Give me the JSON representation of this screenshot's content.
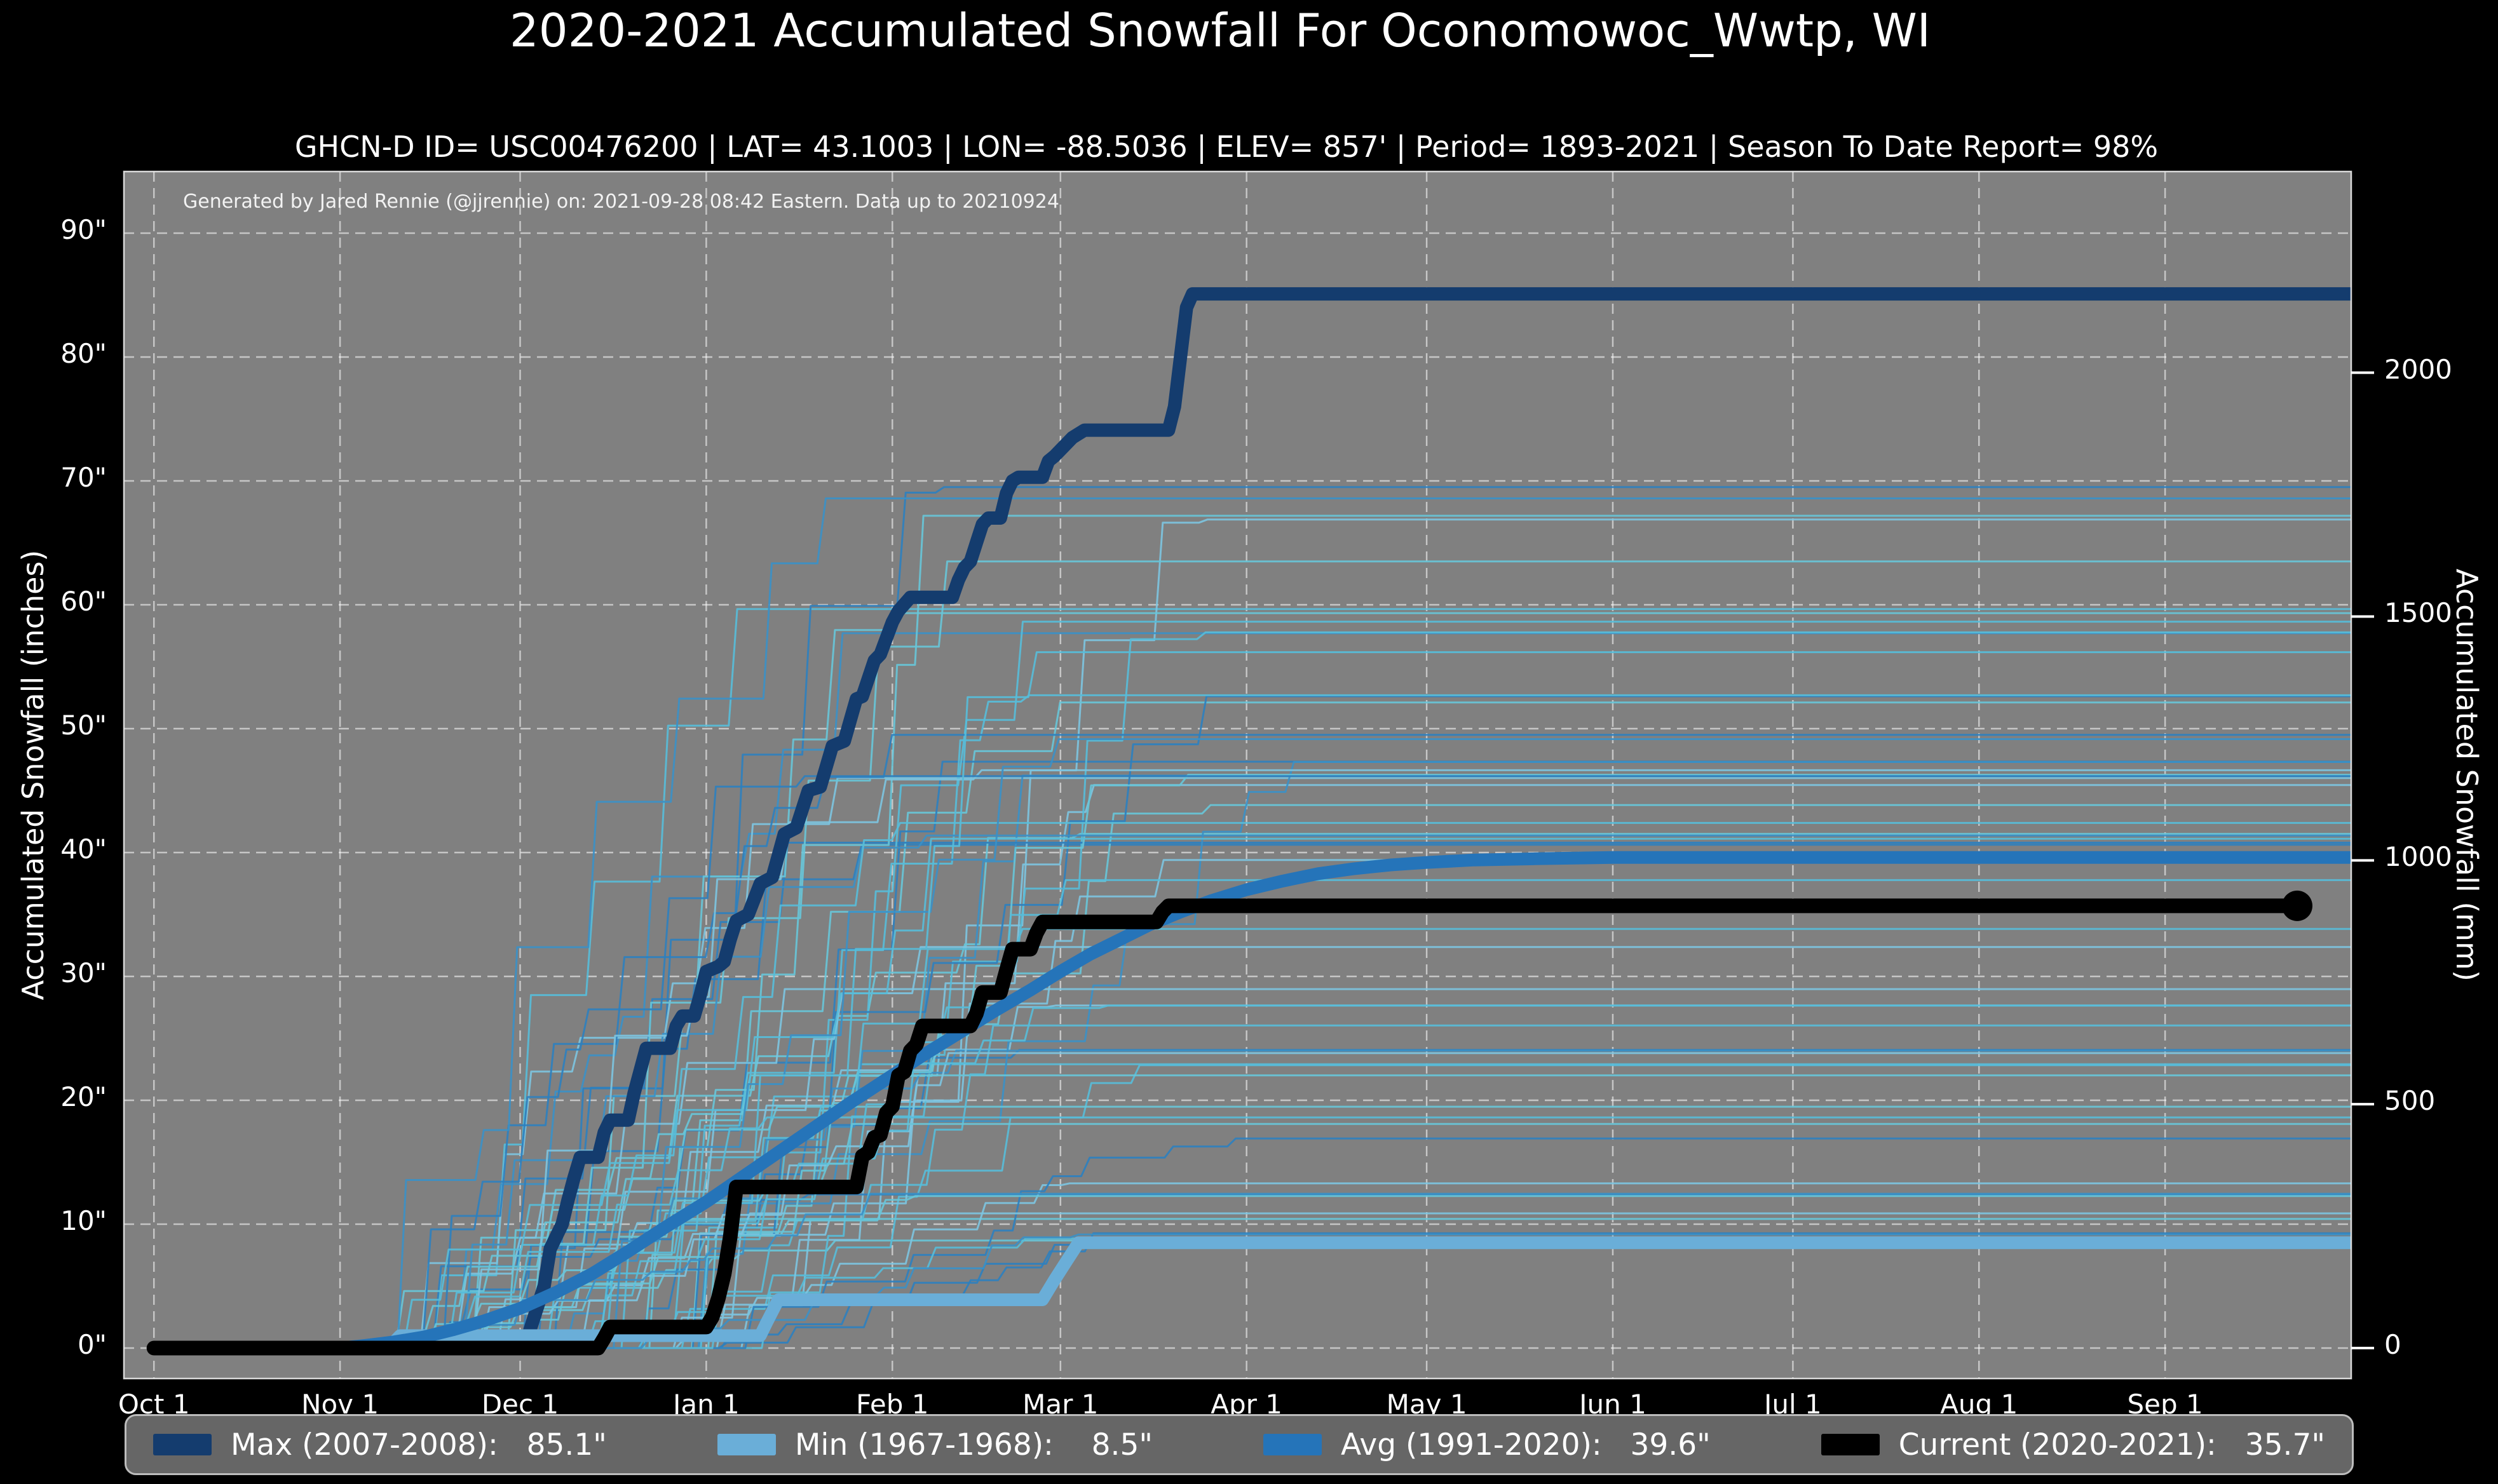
{
  "chart_data": {
    "type": "line",
    "title": "2020-2021 Accumulated Snowfall For Oconomowoc_Wwtp, WI",
    "subtitle": "GHCN-D ID= USC00476200 | LAT= 43.1003 | LON= -88.5036 | ELEV= 857' | Period= 1893-2021 | Season To Date Report= 98%",
    "attribution": "Generated by Jared Rennie (@jjrennie) on: 2021-09-28 08:42 Eastern. Data up to 20210924",
    "x_unit": "days since Oct 1",
    "x_axis": {
      "ticks": [
        {
          "label": "Oct 1",
          "day": 0
        },
        {
          "label": "Nov 1",
          "day": 31
        },
        {
          "label": "Dec 1",
          "day": 61
        },
        {
          "label": "Jan 1",
          "day": 92
        },
        {
          "label": "Feb 1",
          "day": 123
        },
        {
          "label": "Mar 1",
          "day": 151
        },
        {
          "label": "Apr 1",
          "day": 182
        },
        {
          "label": "May 1",
          "day": 212
        },
        {
          "label": "Jun 1",
          "day": 243
        },
        {
          "label": "Jul 1",
          "day": 273
        },
        {
          "label": "Aug 1",
          "day": 304
        },
        {
          "label": "Sep 1",
          "day": 335
        }
      ]
    },
    "y_left": {
      "label": "Accumulated Snowfall (inches)",
      "ticks": [
        {
          "label": "0\"",
          "value": 0
        },
        {
          "label": "10\"",
          "value": 10
        },
        {
          "label": "20\"",
          "value": 20
        },
        {
          "label": "30\"",
          "value": 30
        },
        {
          "label": "40\"",
          "value": 40
        },
        {
          "label": "50\"",
          "value": 50
        },
        {
          "label": "60\"",
          "value": 60
        },
        {
          "label": "70\"",
          "value": 70
        },
        {
          "label": "80\"",
          "value": 80
        },
        {
          "label": "90\"",
          "value": 90
        }
      ],
      "range": [
        -2.46,
        94.97
      ]
    },
    "y_right": {
      "label": "Accumulated Snowfall (mm)",
      "ticks": [
        {
          "label": "0",
          "mm": 0
        },
        {
          "label": "500",
          "mm": 500
        },
        {
          "label": "1000",
          "mm": 1000
        },
        {
          "label": "1500",
          "mm": 1500
        },
        {
          "label": "2000",
          "mm": 2000
        }
      ]
    },
    "plot": {
      "bg": "#808080",
      "fig_bg": "#000000",
      "grid_color": "rgba(255,255,255,0.55)"
    },
    "series": [
      {
        "id": "max",
        "name": "Max (2007-2008)",
        "final": 85.1,
        "color": "#143c6e",
        "width": 21,
        "points": [
          [
            0,
            0
          ],
          [
            61,
            0
          ],
          [
            62,
            0.5
          ],
          [
            63,
            2
          ],
          [
            64,
            3.5
          ],
          [
            65,
            5
          ],
          [
            66,
            8
          ],
          [
            68,
            10
          ],
          [
            69,
            12
          ],
          [
            70,
            13.8
          ],
          [
            71,
            15.4
          ],
          [
            74,
            15.4
          ],
          [
            75,
            17.4
          ],
          [
            76,
            18.4
          ],
          [
            79,
            18.4
          ],
          [
            80,
            20.6
          ],
          [
            82,
            24.2
          ],
          [
            86,
            24.2
          ],
          [
            87,
            26
          ],
          [
            88,
            26.8
          ],
          [
            90,
            26.8
          ],
          [
            91,
            28.5
          ],
          [
            92,
            30.4
          ],
          [
            94,
            30.8
          ],
          [
            95,
            31.2
          ],
          [
            96,
            33
          ],
          [
            97,
            34.5
          ],
          [
            99,
            35
          ],
          [
            101,
            37.5
          ],
          [
            103,
            38
          ],
          [
            105,
            41.5
          ],
          [
            107,
            42
          ],
          [
            109,
            45
          ],
          [
            111,
            45.3
          ],
          [
            113,
            48.6
          ],
          [
            115,
            49
          ],
          [
            117,
            52.4
          ],
          [
            118,
            52.6
          ],
          [
            120,
            55.5
          ],
          [
            121,
            56
          ],
          [
            123,
            58.6
          ],
          [
            124,
            59.5
          ],
          [
            126,
            60.6
          ],
          [
            133,
            60.6
          ],
          [
            134,
            62
          ],
          [
            135,
            63
          ],
          [
            136,
            63.5
          ],
          [
            137,
            65
          ],
          [
            138,
            66.5
          ],
          [
            139,
            67
          ],
          [
            141,
            67
          ],
          [
            142,
            69
          ],
          [
            143,
            70
          ],
          [
            144,
            70.3
          ],
          [
            148,
            70.3
          ],
          [
            149,
            71.6
          ],
          [
            150,
            72
          ],
          [
            151,
            72.5
          ],
          [
            153,
            73.5
          ],
          [
            155,
            74.1
          ],
          [
            169,
            74.1
          ],
          [
            170,
            76
          ],
          [
            171,
            80
          ],
          [
            172,
            84
          ],
          [
            173,
            85.1
          ],
          [
            366,
            85.1
          ]
        ]
      },
      {
        "id": "min",
        "name": "Min (1967-1968)",
        "final": 8.5,
        "color": "#6aaed8",
        "width": 20,
        "points": [
          [
            0,
            0
          ],
          [
            39,
            0
          ],
          [
            40,
            0.5
          ],
          [
            41,
            1
          ],
          [
            101,
            1
          ],
          [
            102,
            2
          ],
          [
            104,
            3.9
          ],
          [
            148,
            3.9
          ],
          [
            150,
            5.5
          ],
          [
            152,
            7
          ],
          [
            154,
            8.5
          ],
          [
            366,
            8.5
          ]
        ]
      },
      {
        "id": "avg",
        "name": "Avg (1991-2020)",
        "final": 39.6,
        "color": "#2574b9",
        "width": 20,
        "points": [
          [
            0,
            0
          ],
          [
            31,
            0
          ],
          [
            35,
            0.2
          ],
          [
            40,
            0.5
          ],
          [
            45,
            0.9
          ],
          [
            50,
            1.5
          ],
          [
            55,
            2.2
          ],
          [
            61,
            3.2
          ],
          [
            67,
            4.5
          ],
          [
            73,
            6
          ],
          [
            79,
            7.8
          ],
          [
            85,
            9.7
          ],
          [
            92,
            11.8
          ],
          [
            98,
            13.8
          ],
          [
            104,
            15.8
          ],
          [
            110,
            17.8
          ],
          [
            116,
            19.8
          ],
          [
            122,
            21.7
          ],
          [
            128,
            23.6
          ],
          [
            134,
            25.4
          ],
          [
            140,
            27.2
          ],
          [
            146,
            28.9
          ],
          [
            151,
            30.4
          ],
          [
            156,
            31.8
          ],
          [
            161,
            33
          ],
          [
            166,
            34.2
          ],
          [
            171,
            35.2
          ],
          [
            176,
            36.1
          ],
          [
            182,
            37
          ],
          [
            188,
            37.7
          ],
          [
            194,
            38.3
          ],
          [
            200,
            38.7
          ],
          [
            206,
            39
          ],
          [
            212,
            39.2
          ],
          [
            220,
            39.4
          ],
          [
            230,
            39.5
          ],
          [
            243,
            39.6
          ],
          [
            366,
            39.6
          ]
        ]
      },
      {
        "id": "current",
        "name": "Current (2020-2021)",
        "final": 35.7,
        "color": "#000000",
        "width": 23,
        "points": [
          [
            0,
            0
          ],
          [
            74,
            0
          ],
          [
            75,
            0.8
          ],
          [
            76,
            1.7
          ],
          [
            92,
            1.7
          ],
          [
            93,
            2.5
          ],
          [
            94,
            4
          ],
          [
            95,
            6
          ],
          [
            96,
            9
          ],
          [
            97,
            13
          ],
          [
            117,
            13
          ],
          [
            118,
            15.5
          ],
          [
            119,
            15.8
          ],
          [
            120,
            17
          ],
          [
            121,
            17.2
          ],
          [
            122,
            19
          ],
          [
            123,
            19.5
          ],
          [
            124,
            22
          ],
          [
            125,
            22.3
          ],
          [
            126,
            24
          ],
          [
            127,
            24.5
          ],
          [
            128,
            26
          ],
          [
            136,
            26
          ],
          [
            137,
            27
          ],
          [
            138,
            28.7
          ],
          [
            141,
            28.7
          ],
          [
            142,
            30.5
          ],
          [
            143,
            32.2
          ],
          [
            146,
            32.2
          ],
          [
            147,
            33.5
          ],
          [
            148,
            34.4
          ],
          [
            167,
            34.4
          ],
          [
            168,
            35.2
          ],
          [
            169,
            35.7
          ],
          [
            357,
            35.7
          ]
        ],
        "end_marker": {
          "day": 357,
          "value": 35.7,
          "r": 24
        }
      }
    ],
    "historical_seasons": {
      "note": "thin background lines = individual seasons 1893-2021 (values not individually legible; rendered procedurally)",
      "count": 60,
      "seed": 7,
      "final_min": 8,
      "final_max": 70,
      "width": 3,
      "opacity": 0.9,
      "colors": [
        "#2c7fbf",
        "#56bcd9",
        "#7cc4e0",
        "#3a90c6",
        "#67c5d8"
      ]
    },
    "legend": {
      "items": [
        {
          "label": "Max (2007-2008):   85.1\"",
          "color": "#143c6e"
        },
        {
          "label": "Min (1967-1968):    8.5\"",
          "color": "#6aaed8"
        },
        {
          "label": "Avg (1991-2020):   39.6\"",
          "color": "#2574b9"
        },
        {
          "label": "Current (2020-2021):   35.7\"",
          "color": "#000000"
        }
      ]
    }
  }
}
